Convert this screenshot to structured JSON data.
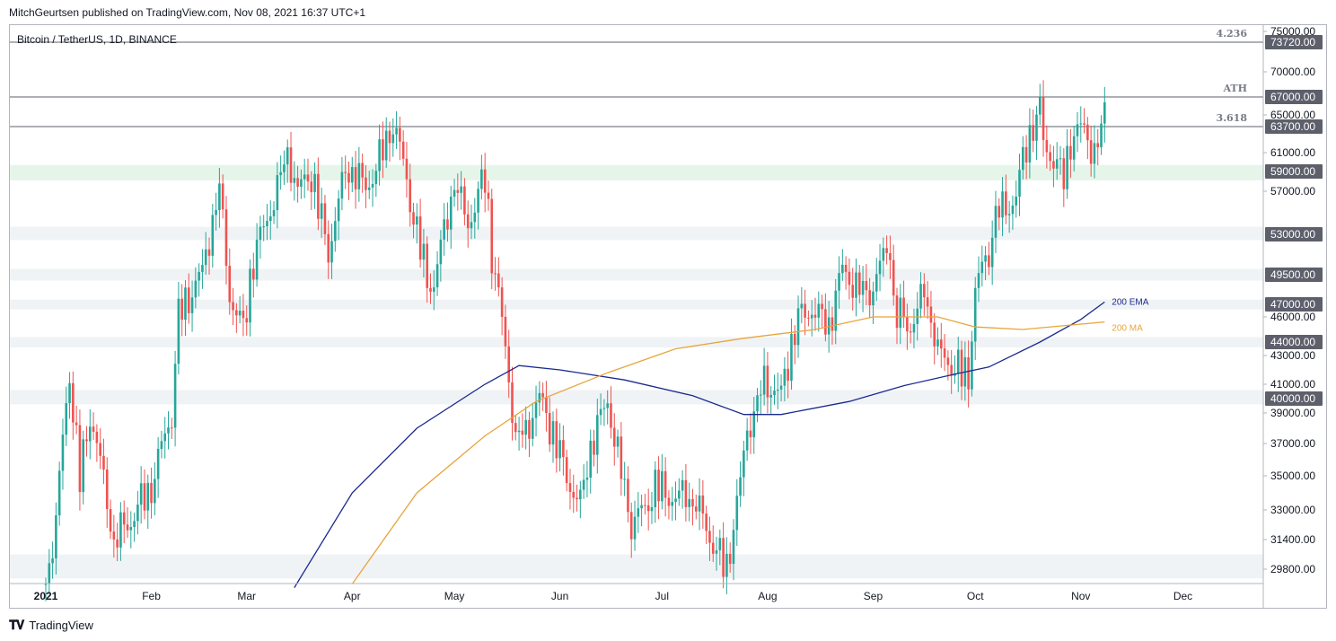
{
  "attribution": "MitchGeurtsen published on TradingView.com, Nov 08, 2021 16:37 UTC+1",
  "logo_text": "TradingView",
  "logo_icon": "tradingview-logo-icon",
  "colors": {
    "up": "#26a69a",
    "down": "#ef5350",
    "ema": "#1a2a8f",
    "ma": "#e8a43c",
    "zone": "#f0f3f5",
    "zone_green": "#e6f5ea",
    "ref_line": "#5d606b"
  },
  "chart_data": {
    "type": "candlestick",
    "title": "Bitcoin / TetherUS, 1D, BINANCE",
    "x_ticks": [
      "2021",
      "Feb",
      "Mar",
      "Apr",
      "May",
      "Jun",
      "Jul",
      "Aug",
      "Sep",
      "Oct",
      "Nov",
      "Dec"
    ],
    "y_ticks": [
      "75000.00",
      "70000.00",
      "65000.00",
      "61000.00",
      "57000.00",
      "46000.00",
      "43000.00",
      "41000.00",
      "39000.00",
      "37000.00",
      "35000.00",
      "33000.00",
      "31400.00",
      "29800.00"
    ],
    "price_labels": [
      "73720.00",
      "67000.00",
      "63700.00",
      "59000.00",
      "53000.00",
      "49500.00",
      "47000.00",
      "44000.00",
      "40000.00"
    ],
    "ref_lines": [
      {
        "label": "4.236",
        "price": 73720
      },
      {
        "label": "ATH",
        "price": 67000
      },
      {
        "label": "3.618",
        "price": 63700
      }
    ],
    "zones": [
      {
        "low": 58100,
        "high": 59700,
        "kind": "green"
      },
      {
        "low": 52500,
        "high": 53700,
        "kind": "grey"
      },
      {
        "low": 49000,
        "high": 50000,
        "kind": "grey"
      },
      {
        "low": 46600,
        "high": 47400,
        "kind": "grey"
      },
      {
        "low": 43600,
        "high": 44400,
        "kind": "grey"
      },
      {
        "low": 39600,
        "high": 40600,
        "kind": "grey"
      },
      {
        "low": 29300,
        "high": 30600,
        "kind": "grey"
      }
    ],
    "indicators": [
      "200 EMA",
      "200 MA"
    ],
    "ohlc_anchors": [
      [
        "2021-01-01",
        29000
      ],
      [
        "2021-01-04",
        32000
      ],
      [
        "2021-01-08",
        41500
      ],
      [
        "2021-01-11",
        35000
      ],
      [
        "2021-01-14",
        39000
      ],
      [
        "2021-01-21",
        31000
      ],
      [
        "2021-01-24",
        32500
      ],
      [
        "2021-01-28",
        33500
      ],
      [
        "2021-02-01",
        34000
      ],
      [
        "2021-02-07",
        39000
      ],
      [
        "2021-02-09",
        46500
      ],
      [
        "2021-02-16",
        49000
      ],
      [
        "2021-02-21",
        57500
      ],
      [
        "2021-02-24",
        48500
      ],
      [
        "2021-02-28",
        45000
      ],
      [
        "2021-03-03",
        50500
      ],
      [
        "2021-03-13",
        61000
      ],
      [
        "2021-03-16",
        56000
      ],
      [
        "2021-03-20",
        58500
      ],
      [
        "2021-03-25",
        52000
      ],
      [
        "2021-03-30",
        58800
      ],
      [
        "2021-04-05",
        58000
      ],
      [
        "2021-04-13",
        63500
      ],
      [
        "2021-04-18",
        56000
      ],
      [
        "2021-04-23",
        49500
      ],
      [
        "2021-04-25",
        48500
      ],
      [
        "2021-05-01",
        57500
      ],
      [
        "2021-05-05",
        55000
      ],
      [
        "2021-05-10",
        58500
      ],
      [
        "2021-05-12",
        51000
      ],
      [
        "2021-05-19",
        37500
      ],
      [
        "2021-05-22",
        38000
      ],
      [
        "2021-05-26",
        39500
      ],
      [
        "2021-06-01",
        36500
      ],
      [
        "2021-06-07",
        33500
      ],
      [
        "2021-06-10",
        36500
      ],
      [
        "2021-06-15",
        40000
      ],
      [
        "2021-06-22",
        32000
      ],
      [
        "2021-06-26",
        32500
      ],
      [
        "2021-06-29",
        34500
      ],
      [
        "2021-07-07",
        33800
      ],
      [
        "2021-07-13",
        32800
      ],
      [
        "2021-07-20",
        29800
      ],
      [
        "2021-07-24",
        34000
      ],
      [
        "2021-07-26",
        37500
      ],
      [
        "2021-07-31",
        41500
      ],
      [
        "2021-08-05",
        40000
      ],
      [
        "2021-08-10",
        46000
      ],
      [
        "2021-08-14",
        47500
      ],
      [
        "2021-08-19",
        45000
      ],
      [
        "2021-08-23",
        49500
      ],
      [
        "2021-08-28",
        48500
      ],
      [
        "2021-09-01",
        48000
      ],
      [
        "2021-09-06",
        52000
      ],
      [
        "2021-09-07",
        46500
      ],
      [
        "2021-09-12",
        46000
      ],
      [
        "2021-09-16",
        48000
      ],
      [
        "2021-09-20",
        43000
      ],
      [
        "2021-09-25",
        42500
      ],
      [
        "2021-09-29",
        41500
      ],
      [
        "2021-10-01",
        47500
      ],
      [
        "2021-10-05",
        51000
      ],
      [
        "2021-10-07",
        55000
      ],
      [
        "2021-10-13",
        57000
      ],
      [
        "2021-10-16",
        61500
      ],
      [
        "2021-10-20",
        65500
      ],
      [
        "2021-10-21",
        62500
      ],
      [
        "2021-10-24",
        61000
      ],
      [
        "2021-10-27",
        58500
      ],
      [
        "2021-10-29",
        62000
      ],
      [
        "2021-11-02",
        62500
      ],
      [
        "2021-11-05",
        61000
      ],
      [
        "2021-11-07",
        63500
      ],
      [
        "2021-11-08",
        66000
      ]
    ],
    "ema_200": [
      [
        "2021-03-15",
        28800
      ],
      [
        "2021-04-01",
        34000
      ],
      [
        "2021-04-20",
        38000
      ],
      [
        "2021-05-10",
        41000
      ],
      [
        "2021-05-20",
        42300
      ],
      [
        "2021-06-01",
        42000
      ],
      [
        "2021-06-20",
        41300
      ],
      [
        "2021-07-10",
        40200
      ],
      [
        "2021-07-25",
        38900
      ],
      [
        "2021-08-05",
        38900
      ],
      [
        "2021-08-25",
        39800
      ],
      [
        "2021-09-10",
        40900
      ],
      [
        "2021-09-25",
        41700
      ],
      [
        "2021-10-05",
        42200
      ],
      [
        "2021-10-20",
        44000
      ],
      [
        "2021-11-01",
        45800
      ],
      [
        "2021-11-08",
        47200
      ]
    ],
    "ma_200": [
      [
        "2021-04-01",
        29000
      ],
      [
        "2021-04-20",
        34000
      ],
      [
        "2021-05-10",
        37500
      ],
      [
        "2021-05-25",
        39800
      ],
      [
        "2021-06-15",
        41800
      ],
      [
        "2021-07-05",
        43500
      ],
      [
        "2021-07-25",
        44300
      ],
      [
        "2021-08-15",
        45000
      ],
      [
        "2021-09-01",
        46000
      ],
      [
        "2021-09-20",
        46000
      ],
      [
        "2021-10-01",
        45200
      ],
      [
        "2021-10-15",
        45000
      ],
      [
        "2021-11-08",
        45600
      ]
    ]
  }
}
